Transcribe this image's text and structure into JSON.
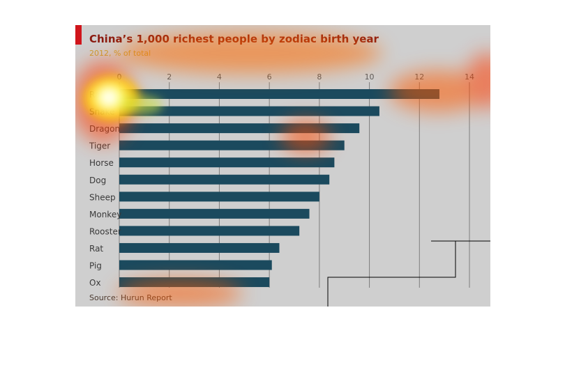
{
  "colors": {
    "panel_bg": "#cfcfcf",
    "bar": "#1b4a5e",
    "accent_red": "#d0151b",
    "title": "#8a1a10",
    "subtitle": "#c8a032",
    "gridline": "#7d7d7d",
    "tick_label": "#5a5a5a",
    "category_label": "#3a3a3a"
  },
  "chart_data": {
    "type": "bar",
    "orientation": "horizontal",
    "title": "China’s 1,000 richest people by zodiac birth year",
    "subtitle": "2012, % of total",
    "source": "Source: Hurun Report",
    "categories": [
      "Rabbit",
      "Snake",
      "Dragon",
      "Tiger",
      "Horse",
      "Dog",
      "Sheep",
      "Monkey",
      "Rooster",
      "Rat",
      "Pig",
      "Ox"
    ],
    "values": [
      12.8,
      10.4,
      9.6,
      9.0,
      8.6,
      8.4,
      8.0,
      7.6,
      7.2,
      6.4,
      6.1,
      6.0
    ],
    "xlim": [
      0,
      14
    ],
    "xticks": [
      0,
      2,
      4,
      6,
      8,
      10,
      12,
      14
    ],
    "grid": true,
    "legend": "none",
    "heatmap_overlay": true
  }
}
